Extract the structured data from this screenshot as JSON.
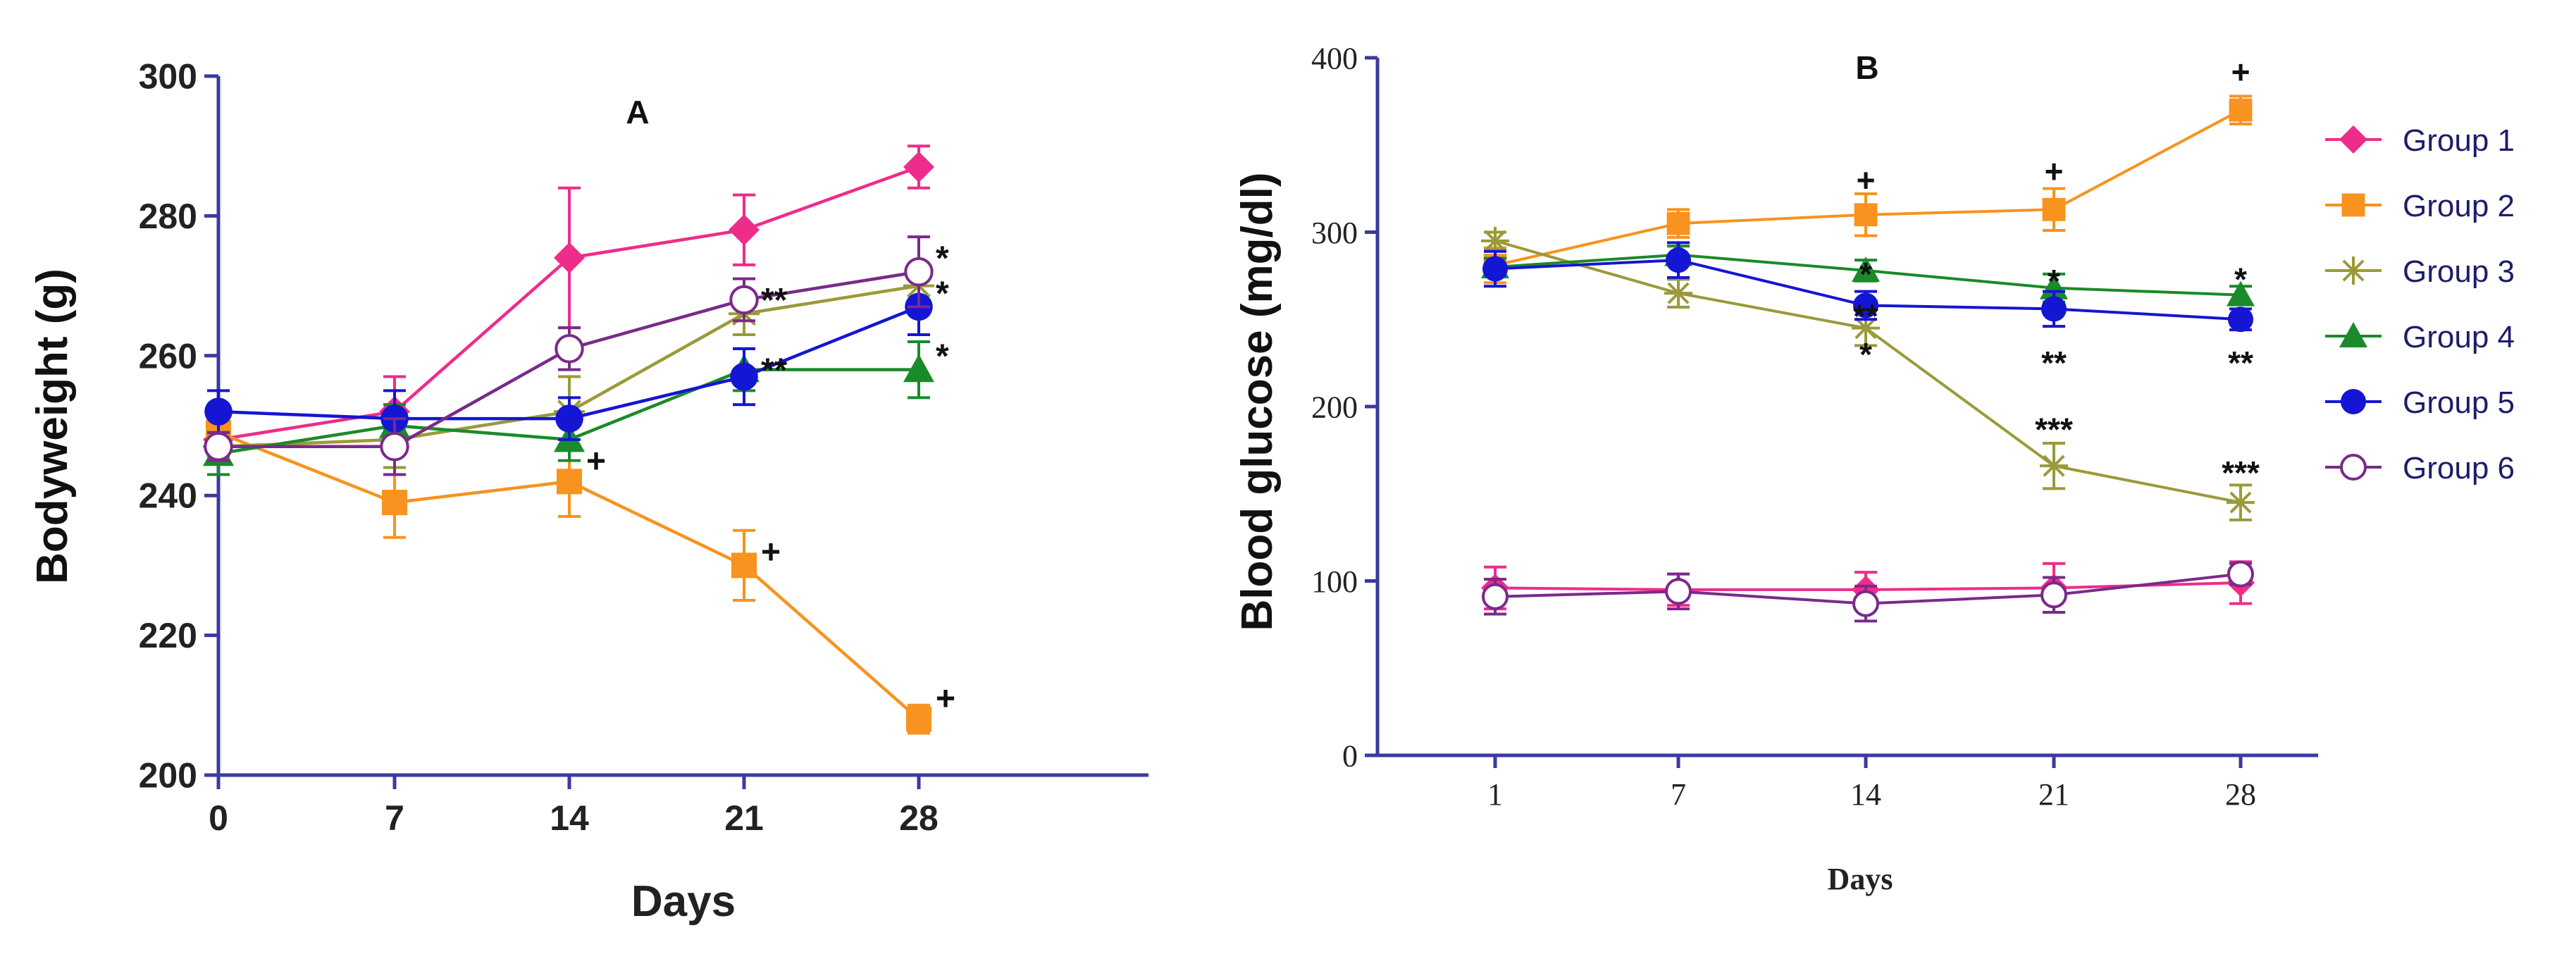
{
  "chart_data": [
    {
      "panel": "A",
      "type": "line",
      "title": "A",
      "xlabel": "Days",
      "ylabel": "Bodyweight (g)",
      "x": [
        0,
        7,
        14,
        21,
        28
      ],
      "x_tick_labels": [
        "0",
        "7",
        "14",
        "21",
        "28"
      ],
      "ylim": [
        200,
        300
      ],
      "y_ticks": [
        200,
        220,
        240,
        260,
        280,
        300
      ],
      "y_tick_labels": [
        "200",
        "220",
        "240",
        "260",
        "280",
        "300"
      ],
      "series": [
        {
          "name": "Group 1",
          "color": "#ee2c8a",
          "marker": "diamond",
          "values": [
            248,
            252,
            274,
            278,
            287
          ],
          "errors": [
            3,
            5,
            10,
            5,
            3
          ]
        },
        {
          "name": "Group 2",
          "color": "#f7931e",
          "marker": "square",
          "values": [
            249,
            239,
            242,
            230,
            208
          ],
          "errors": [
            3,
            5,
            5,
            5,
            2
          ]
        },
        {
          "name": "Group 3",
          "color": "#9a9a3a",
          "marker": "star",
          "values": [
            247,
            248,
            252,
            266,
            270
          ],
          "errors": [
            2,
            4,
            5,
            3,
            3
          ]
        },
        {
          "name": "Group 4",
          "color": "#1a8a2a",
          "marker": "triangle",
          "values": [
            246,
            250,
            248,
            258,
            258
          ],
          "errors": [
            3,
            3,
            3,
            3,
            4
          ]
        },
        {
          "name": "Group 5",
          "color": "#1515d4",
          "marker": "circle",
          "values": [
            252,
            251,
            251,
            257,
            267
          ],
          "errors": [
            3,
            4,
            3,
            4,
            4
          ]
        },
        {
          "name": "Group 6",
          "color": "#7a2a8a",
          "marker": "open-circle",
          "values": [
            247,
            247,
            261,
            268,
            272
          ],
          "errors": [
            2,
            4,
            3,
            3,
            5
          ]
        }
      ],
      "annotations": [
        {
          "x": 14,
          "y": 245,
          "text": "+"
        },
        {
          "x": 21,
          "y": 232,
          "text": "+"
        },
        {
          "x": 28,
          "y": 211,
          "text": "+"
        },
        {
          "x": 21,
          "y": 268,
          "text": "**"
        },
        {
          "x": 21,
          "y": 258,
          "text": "**"
        },
        {
          "x": 28,
          "y": 274,
          "text": "*"
        },
        {
          "x": 28,
          "y": 269,
          "text": "*"
        },
        {
          "x": 28,
          "y": 260,
          "text": "*"
        }
      ]
    },
    {
      "panel": "B",
      "type": "line",
      "title": "B",
      "xlabel": "Days",
      "ylabel": "Blood glucose (mg/dl)",
      "x": [
        1,
        7,
        14,
        21,
        28
      ],
      "x_tick_labels": [
        "1",
        "7",
        "14",
        "21",
        "28"
      ],
      "ylim": [
        0,
        400
      ],
      "y_ticks": [
        0,
        100,
        200,
        300,
        400
      ],
      "y_tick_labels": [
        "0",
        "100",
        "200",
        "300",
        "400"
      ],
      "legend_position": "right",
      "series": [
        {
          "name": "Group 1",
          "color": "#ee2c8a",
          "marker": "diamond",
          "values": [
            96,
            95,
            95,
            96,
            99
          ],
          "errors": [
            12,
            9,
            10,
            14,
            12
          ]
        },
        {
          "name": "Group 2",
          "color": "#f7931e",
          "marker": "square",
          "values": [
            281,
            305,
            310,
            313,
            370
          ],
          "errors": [
            10,
            8,
            12,
            12,
            8
          ]
        },
        {
          "name": "Group 3",
          "color": "#9a9a3a",
          "marker": "star",
          "values": [
            295,
            265,
            245,
            166,
            145
          ],
          "errors": [
            5,
            8,
            10,
            13,
            10
          ]
        },
        {
          "name": "Group 4",
          "color": "#1a8a2a",
          "marker": "triangle",
          "values": [
            280,
            287,
            278,
            268,
            264
          ],
          "errors": [
            5,
            5,
            6,
            8,
            5
          ]
        },
        {
          "name": "Group 5",
          "color": "#1515d4",
          "marker": "circle",
          "values": [
            279,
            284,
            258,
            256,
            250
          ],
          "errors": [
            10,
            10,
            8,
            10,
            6
          ]
        },
        {
          "name": "Group 6",
          "color": "#7a2a8a",
          "marker": "open-circle",
          "values": [
            91,
            94,
            87,
            92,
            104
          ],
          "errors": [
            10,
            10,
            10,
            10,
            6
          ]
        }
      ],
      "annotations": [
        {
          "x": 14,
          "y": 330,
          "text": "+"
        },
        {
          "x": 21,
          "y": 335,
          "text": "+"
        },
        {
          "x": 28,
          "y": 392,
          "text": "+"
        },
        {
          "x": 14,
          "y": 276,
          "text": "*"
        },
        {
          "x": 14,
          "y": 252,
          "text": "**"
        },
        {
          "x": 14,
          "y": 230,
          "text": "*"
        },
        {
          "x": 21,
          "y": 272,
          "text": "*"
        },
        {
          "x": 21,
          "y": 225,
          "text": "**"
        },
        {
          "x": 21,
          "y": 187,
          "text": "***"
        },
        {
          "x": 28,
          "y": 273,
          "text": "*"
        },
        {
          "x": 28,
          "y": 225,
          "text": "**"
        },
        {
          "x": 28,
          "y": 162,
          "text": "***"
        }
      ]
    }
  ]
}
